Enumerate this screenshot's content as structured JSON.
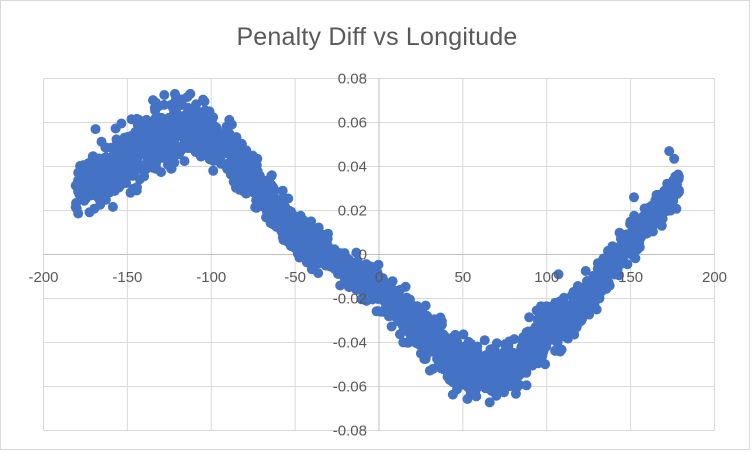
{
  "chart": {
    "title": "Penalty Diff vs Longitude"
  },
  "chart_data": {
    "type": "scatter",
    "title": "Penalty Diff vs Longitude",
    "xlabel": "",
    "ylabel": "",
    "xlim": [
      -200,
      200
    ],
    "ylim": [
      -0.08,
      0.08
    ],
    "x_ticks": [
      {
        "v": -200,
        "label": "-200"
      },
      {
        "v": -150,
        "label": "-150"
      },
      {
        "v": -100,
        "label": "-100"
      },
      {
        "v": -50,
        "label": "-50"
      },
      {
        "v": 0,
        "label": "0"
      },
      {
        "v": 50,
        "label": "50"
      },
      {
        "v": 100,
        "label": "100"
      },
      {
        "v": 150,
        "label": "150"
      },
      {
        "v": 200,
        "label": "200"
      }
    ],
    "y_ticks": [
      {
        "v": 0.08,
        "label": "0.08"
      },
      {
        "v": 0.06,
        "label": "0.06"
      },
      {
        "v": 0.04,
        "label": "0.04"
      },
      {
        "v": 0.02,
        "label": "0.02"
      },
      {
        "v": 0,
        "label": "0"
      },
      {
        "v": -0.02,
        "label": "-0.02"
      },
      {
        "v": -0.04,
        "label": "-0.04"
      },
      {
        "v": -0.06,
        "label": "-0.06"
      },
      {
        "v": -0.08,
        "label": "-0.08"
      }
    ],
    "grid": true,
    "legend": "none",
    "marker_color": "#4472C4",
    "marker_radius_px": 5,
    "gridline_color": "#d9d9d9",
    "axis_line_color": "#bfbfbf",
    "text_color": "#595959",
    "background_color": "#ffffff",
    "series": [
      {
        "name": "Penalty Diff",
        "n_points": 2450,
        "seed": 1337,
        "x_range": [
          -181,
          179
        ],
        "noise_clamp_sigma": 2.5,
        "trend_center_sd": [
          [
            -181,
            0.0305,
            0.0048
          ],
          [
            -172,
            0.033,
            0.0055
          ],
          [
            -160,
            0.038,
            0.0068
          ],
          [
            -148,
            0.0455,
            0.0075
          ],
          [
            -136,
            0.0525,
            0.0072
          ],
          [
            -124,
            0.056,
            0.0068
          ],
          [
            -112,
            0.0565,
            0.0066
          ],
          [
            -100,
            0.054,
            0.0062
          ],
          [
            -90,
            0.049,
            0.0058
          ],
          [
            -80,
            0.0395,
            0.0055
          ],
          [
            -70,
            0.0285,
            0.005
          ],
          [
            -60,
            0.021,
            0.0047
          ],
          [
            -50,
            0.01,
            0.0045
          ],
          [
            -40,
            0.004,
            0.0043
          ],
          [
            -30,
            -0.0015,
            0.0043
          ],
          [
            -20,
            -0.007,
            0.0043
          ],
          [
            -10,
            -0.0115,
            0.0043
          ],
          [
            0,
            -0.016,
            0.0045
          ],
          [
            10,
            -0.0235,
            0.005
          ],
          [
            20,
            -0.031,
            0.0055
          ],
          [
            30,
            -0.038,
            0.0058
          ],
          [
            40,
            -0.0455,
            0.006
          ],
          [
            50,
            -0.05,
            0.006
          ],
          [
            60,
            -0.053,
            0.0058
          ],
          [
            72,
            -0.0525,
            0.0058
          ],
          [
            85,
            -0.047,
            0.006
          ],
          [
            100,
            -0.0335,
            0.0062
          ],
          [
            115,
            -0.028,
            0.0052
          ],
          [
            130,
            -0.013,
            0.0047
          ],
          [
            142,
            -0.002,
            0.0043
          ],
          [
            152,
            0.0075,
            0.004
          ],
          [
            162,
            0.016,
            0.0038
          ],
          [
            171,
            0.025,
            0.0038
          ],
          [
            179,
            0.032,
            0.004
          ]
        ],
        "outlier_points": [
          [
            -169,
            0.057
          ],
          [
            -133,
            0.069
          ],
          [
            -128,
            0.0725
          ],
          [
            -121,
            0.0717
          ],
          [
            -117,
            0.0705
          ],
          [
            44,
            -0.0637
          ],
          [
            58,
            -0.0645
          ],
          [
            107,
            -0.009
          ],
          [
            152,
            0.026
          ],
          [
            173,
            0.047
          ],
          [
            176,
            0.0435
          ]
        ]
      }
    ]
  }
}
